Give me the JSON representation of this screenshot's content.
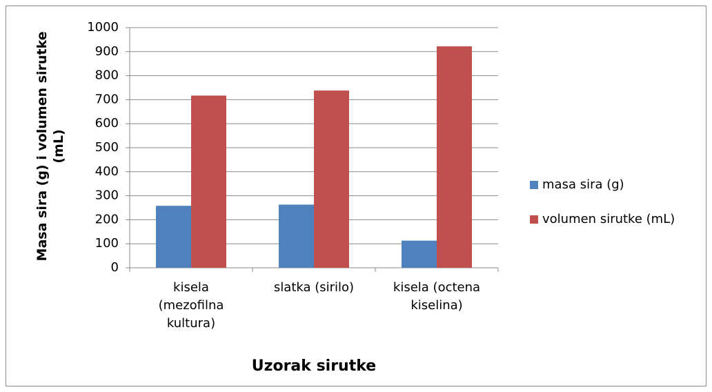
{
  "chart_data": {
    "type": "bar",
    "categories": [
      "kisela (mezofilna kultura)",
      "slatka (sirilo)",
      "kisela (octena kiselina)"
    ],
    "series": [
      {
        "name": "masa sira (g)",
        "color": "#4f81bd",
        "values": [
          258,
          263,
          113
        ]
      },
      {
        "name": "volumen sirutke (mL)",
        "color": "#c0504d",
        "values": [
          717,
          738,
          922
        ]
      }
    ],
    "xlabel": "Uzorak sirutke",
    "ylabel": "Masa sira (g) i volumen sirutke (mL)",
    "ylim": [
      0,
      1000
    ],
    "yticks": [
      0,
      100,
      200,
      300,
      400,
      500,
      600,
      700,
      800,
      900,
      1000
    ],
    "grid": true,
    "legend": "right"
  }
}
